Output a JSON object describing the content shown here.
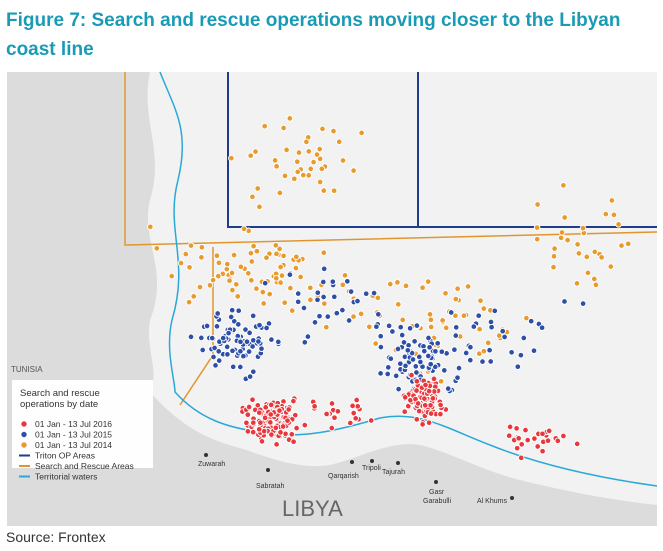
{
  "header": {
    "title": "Figure 7: Search and rescue operations moving closer to the Libyan coast line"
  },
  "legend": {
    "title": "Search and rescue operations by date",
    "items": [
      "01 Jan - 13 Jul 2016",
      "01 Jan - 13 Jul 2015",
      "01 Jan - 13 Jul 2014",
      "Triton OP Areas",
      "Search and Rescue Areas",
      "Territorial waters"
    ]
  },
  "places": [
    "TUNISIA",
    "Zuwarah",
    "Sabratah",
    "Qarqarish",
    "Tripoli",
    "Tajurah",
    "Gasr",
    "Garabulli",
    "Al Khums",
    "LIBYA"
  ],
  "footer": {
    "source": "Source: Frontex"
  }
}
